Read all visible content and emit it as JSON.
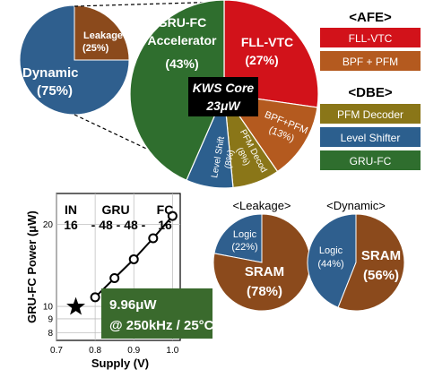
{
  "colors": {
    "dynamic_blue": "#2f5f8e",
    "leakage_brown": "#8b4a1c",
    "gru_green": "#2f6e2e",
    "fll_red": "#d2121a",
    "bpf_brown": "#b45a1f",
    "pfm_gold": "#8a7618",
    "level_blue": "#2c5f8e",
    "core_box": "#000000",
    "note_green": "#3a6a2d"
  },
  "chart_data": [
    {
      "type": "pie",
      "id": "total_power",
      "slices": [
        {
          "label": "Dynamic",
          "value": 75,
          "value_label": "(75%)",
          "color": "#2f5f8e"
        },
        {
          "label": "Leakage",
          "value": 25,
          "value_label": "(25%)",
          "color": "#8b4a1c"
        }
      ]
    },
    {
      "type": "pie",
      "id": "kws_core_breakdown",
      "center_label_line1": "KWS Core",
      "center_label_line2": "23μW",
      "slices": [
        {
          "label": "FLL-VTC",
          "value": 27,
          "value_label": "(27%)",
          "color": "#d2121a"
        },
        {
          "label": "BPF+PFM",
          "value": 13,
          "value_label": "(13%)",
          "color": "#b45a1f"
        },
        {
          "label": "PFM Decod",
          "value": 8,
          "value_label": "(8%)",
          "color": "#8a7618"
        },
        {
          "label": "Level Shift",
          "value": 8,
          "value_label": "(8%)",
          "color": "#2c5f8e"
        },
        {
          "label": "GRU-FC Accelerator",
          "value": 43,
          "value_label": "(43%)",
          "color": "#2f6e2e"
        }
      ]
    },
    {
      "type": "line",
      "id": "power_vs_supply",
      "xlabel": "Supply (V)",
      "ylabel": "GRU-FC Power (μW)",
      "x_ticks": [
        "0.7",
        "0.8",
        "0.9",
        "1.0"
      ],
      "y_ticks": [
        "8",
        "9",
        "10",
        "20"
      ],
      "xlim": [
        0.7,
        1.02
      ],
      "ylim": [
        7.5,
        26
      ],
      "y_scale": "log",
      "series": [
        {
          "x": [
            0.8,
            0.85,
            0.9,
            0.95,
            1.0
          ],
          "y": [
            10.8,
            12.7,
            14.9,
            17.8,
            21.5
          ]
        }
      ],
      "highlight": {
        "x": 0.75,
        "y": 9.96,
        "marker": "star"
      },
      "topology_labels": [
        {
          "top": "IN",
          "bottom": "16"
        },
        {
          "top": "GRU",
          "bottom": "- 48 - 48 -"
        },
        {
          "top": "FC",
          "bottom": "16"
        }
      ]
    },
    {
      "type": "pie",
      "id": "leakage_breakdown",
      "title": "<Leakage>",
      "slices": [
        {
          "label": "Logic",
          "value": 22,
          "value_label": "(22%)",
          "color": "#2f5f8e"
        },
        {
          "label": "SRAM",
          "value": 78,
          "value_label": "(78%)",
          "color": "#8b4a1c"
        }
      ]
    },
    {
      "type": "pie",
      "id": "dynamic_breakdown",
      "title": "<Dynamic>",
      "slices": [
        {
          "label": "Logic",
          "value": 44,
          "value_label": "(44%)",
          "color": "#2f5f8e"
        },
        {
          "label": "SRAM",
          "value": 56,
          "value_label": "(56%)",
          "color": "#8b4a1c"
        }
      ]
    }
  ],
  "legend": {
    "afe_title": "<AFE>",
    "afe_items": [
      {
        "label": "FLL-VTC",
        "color": "#d2121a"
      },
      {
        "label": "BPF + PFM",
        "color": "#b45a1f"
      }
    ],
    "dbe_title": "<DBE>",
    "dbe_items": [
      {
        "label": "PFM Decoder",
        "color": "#8a7618"
      },
      {
        "label": "Level Shifter",
        "color": "#2c5f8e"
      },
      {
        "label": "GRU-FC",
        "color": "#2f6e2e"
      }
    ]
  },
  "note": {
    "line1": "9.96μW",
    "line2": "@ 250kHz / 25°C"
  }
}
